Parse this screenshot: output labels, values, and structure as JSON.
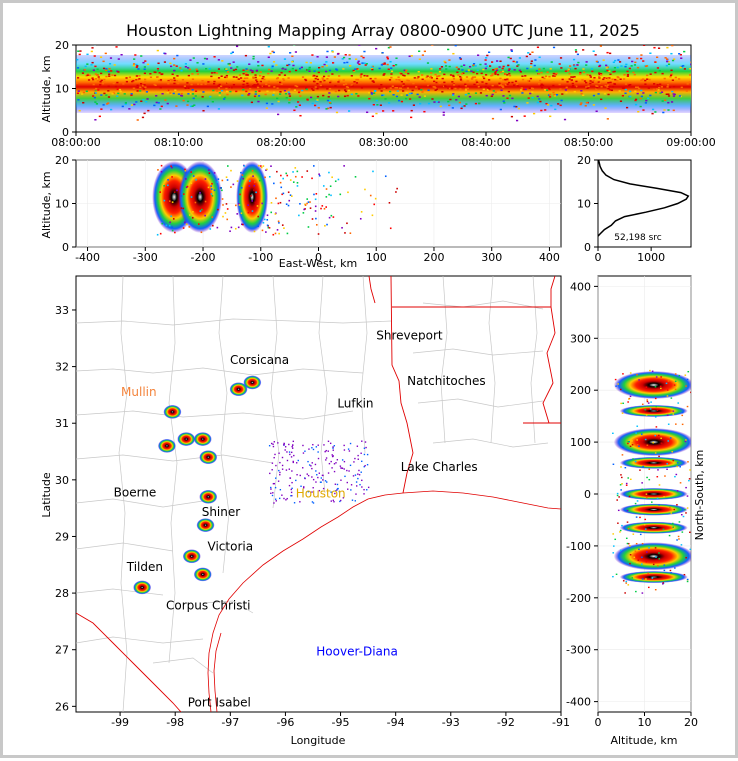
{
  "chart_data": {
    "type": "scatter",
    "title": "Houston Lightning Mapping Array 0800-0900 UTC June 11, 2025",
    "panels": {
      "time_altitude": {
        "xlabel": "",
        "ylabel": "Altitude, km",
        "ylim": [
          0,
          20
        ],
        "x_ticks": [
          "08:00:00",
          "08:10:00",
          "08:20:00",
          "08:30:00",
          "08:40:00",
          "08:50:00",
          "09:00:00"
        ],
        "y_ticks": [
          "0",
          "10",
          "20"
        ],
        "density_band_km": [
          4,
          17
        ],
        "peak_altitude_km": 12
      },
      "eastwest_altitude": {
        "xlabel": "East-West, km",
        "ylabel": "Altitude, km",
        "xlim": [
          -420,
          420
        ],
        "ylim": [
          0,
          20
        ],
        "x_ticks": [
          "-400",
          "-300",
          "-200",
          "-100",
          "0",
          "100",
          "200",
          "300",
          "400"
        ],
        "y_ticks": [
          "0",
          "10",
          "20"
        ],
        "clusters_x_km": [
          -250,
          -205,
          -115
        ]
      },
      "altitude_histogram": {
        "annotation": "52,198 src",
        "x_ticks": [
          "0",
          "1000"
        ],
        "y_ticks": [
          "0",
          "10",
          "20"
        ],
        "xlim": [
          0,
          1750
        ],
        "ylim": [
          0,
          20
        ],
        "points": [
          [
            0,
            2.5
          ],
          [
            40,
            3
          ],
          [
            120,
            4
          ],
          [
            250,
            5
          ],
          [
            330,
            6
          ],
          [
            500,
            7
          ],
          [
            900,
            8
          ],
          [
            1250,
            9
          ],
          [
            1500,
            10
          ],
          [
            1660,
            11
          ],
          [
            1700,
            11.7
          ],
          [
            1560,
            12.5
          ],
          [
            1100,
            13.5
          ],
          [
            600,
            14.5
          ],
          [
            300,
            15.5
          ],
          [
            150,
            16.5
          ],
          [
            80,
            17.5
          ],
          [
            40,
            18.5
          ],
          [
            20,
            19.5
          ],
          [
            10,
            20
          ]
        ]
      },
      "map": {
        "xlabel": "Longitude",
        "ylabel": "Latitude",
        "xlim": [
          -99.8,
          -91.0
        ],
        "ylim": [
          25.9,
          33.6
        ],
        "x_ticks": [
          "-99",
          "-98",
          "-97",
          "-96",
          "-95",
          "-94",
          "-93",
          "-92",
          "-91"
        ],
        "y_ticks": [
          "26",
          "27",
          "28",
          "29",
          "30",
          "31",
          "32",
          "33"
        ],
        "cities": [
          {
            "name": "Shreveport",
            "lon": -93.75,
            "lat": 32.55,
            "color": "#000000"
          },
          {
            "name": "Corsicana",
            "lon": -96.47,
            "lat": 32.12,
            "color": "#000000"
          },
          {
            "name": "Natchitoches",
            "lon": -93.08,
            "lat": 31.75,
            "color": "#000000"
          },
          {
            "name": "Mullin",
            "lon": -98.66,
            "lat": 31.55,
            "color": "#f4843c"
          },
          {
            "name": "Lufkin",
            "lon": -94.73,
            "lat": 31.35,
            "color": "#000000"
          },
          {
            "name": "Lake Charles",
            "lon": -93.21,
            "lat": 30.23,
            "color": "#000000"
          },
          {
            "name": "Boerne",
            "lon": -98.73,
            "lat": 29.78,
            "color": "#000000"
          },
          {
            "name": "Shiner",
            "lon": -97.17,
            "lat": 29.43,
            "color": "#000000"
          },
          {
            "name": "Victoria",
            "lon": -97.0,
            "lat": 28.82,
            "color": "#000000"
          },
          {
            "name": "Tilden",
            "lon": -98.55,
            "lat": 28.46,
            "color": "#000000"
          },
          {
            "name": "Corpus Christi",
            "lon": -97.4,
            "lat": 27.78,
            "color": "#000000"
          },
          {
            "name": "Hoover-Diana",
            "lon": -94.7,
            "lat": 26.97,
            "color": "#0000ff"
          },
          {
            "name": "Port Isabel",
            "lon": -97.2,
            "lat": 26.07,
            "color": "#000000"
          },
          {
            "name": "Houston",
            "lon": -95.36,
            "lat": 29.76,
            "color": "#e0a800"
          }
        ],
        "storm_clusters": [
          {
            "lon": -96.6,
            "lat": 31.72
          },
          {
            "lon": -96.85,
            "lat": 31.6
          },
          {
            "lon": -98.05,
            "lat": 31.2
          },
          {
            "lon": -97.8,
            "lat": 30.72
          },
          {
            "lon": -97.5,
            "lat": 30.72
          },
          {
            "lon": -98.15,
            "lat": 30.6
          },
          {
            "lon": -97.4,
            "lat": 30.4
          },
          {
            "lon": -97.4,
            "lat": 29.7
          },
          {
            "lon": -97.45,
            "lat": 29.2
          },
          {
            "lon": -97.7,
            "lat": 28.65
          },
          {
            "lon": -97.5,
            "lat": 28.33
          },
          {
            "lon": -98.6,
            "lat": 28.1
          }
        ]
      },
      "northsouth_altitude": {
        "xlabel": "Altitude, km",
        "ylabel": "North-South, km",
        "xlim": [
          0,
          20
        ],
        "ylim": [
          -420,
          420
        ],
        "x_ticks": [
          "0",
          "10",
          "20"
        ],
        "y_ticks": [
          "-400",
          "-300",
          "-200",
          "-100",
          "0",
          "100",
          "200",
          "300",
          "400"
        ],
        "clusters_y_km": [
          210,
          160,
          100,
          60,
          0,
          -30,
          -65,
          -120,
          -160
        ]
      }
    }
  }
}
